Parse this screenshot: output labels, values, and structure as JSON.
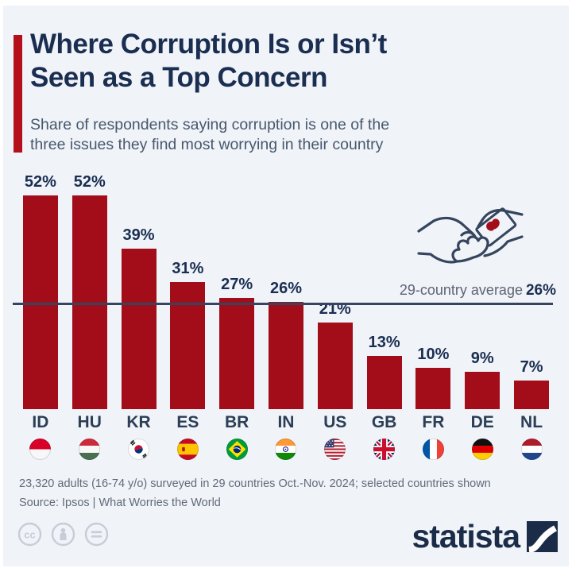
{
  "header": {
    "title_lines": [
      "Where Corruption Is or Isn’t",
      "Seen as a Top Concern"
    ],
    "subtitle_lines": [
      "Share of respondents saying corruption is one of the",
      "three issues they find most worrying in their country"
    ]
  },
  "chart_data": {
    "type": "bar",
    "title": "Where Corruption Is or Isn't Seen as a Top Concern",
    "subtitle": "Share of respondents saying corruption is one of the three issues they find most worrying in their country",
    "categories": [
      "ID",
      "HU",
      "KR",
      "ES",
      "BR",
      "IN",
      "US",
      "GB",
      "FR",
      "DE",
      "NL"
    ],
    "country_names": [
      "Indonesia",
      "Hungary",
      "South Korea",
      "Spain",
      "Brazil",
      "India",
      "United States",
      "United Kingdom",
      "France",
      "Germany",
      "Netherlands"
    ],
    "values": [
      52,
      52,
      39,
      31,
      27,
      26,
      21,
      13,
      10,
      9,
      7
    ],
    "value_labels": [
      "52%",
      "52%",
      "39%",
      "31%",
      "27%",
      "26%",
      "21%",
      "13%",
      "10%",
      "9%",
      "7%"
    ],
    "unit": "%",
    "average": {
      "label": "29-country average",
      "value": 26,
      "value_label": "26%"
    },
    "ylim": [
      0,
      58
    ],
    "grid": false,
    "legend": null,
    "bar_color": "#a30d1a",
    "average_line_color": "#36455f"
  },
  "icons": {
    "handshake": "handshake-bribe-icon",
    "cc_icons": [
      "cc-icon",
      "attribution-person-icon",
      "equals-icon"
    ]
  },
  "footer": {
    "note": "23,320 adults (16-74 y/o) surveyed in 29 countries Oct.-Nov. 2024; selected countries shown",
    "source": "Source: Ipsos | What Worries the World",
    "brand": "statista"
  },
  "colors": {
    "background": "#f0f3f8",
    "accent_red": "#b50f1c",
    "title_navy": "#1a2e51",
    "subtitle_grey": "#47586d",
    "footer_grey": "#606b79"
  }
}
